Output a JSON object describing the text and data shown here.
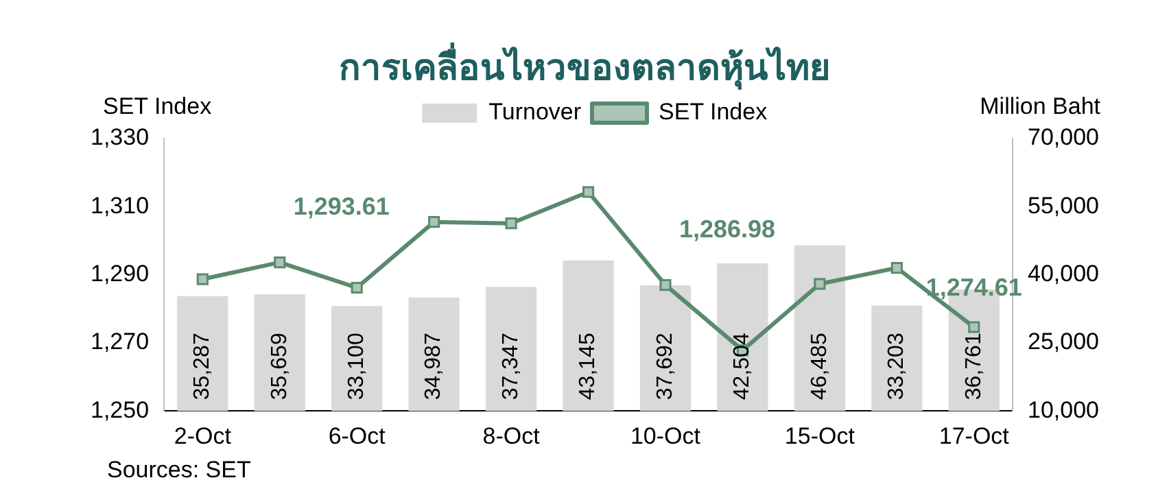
{
  "chart_data": {
    "type": "bar",
    "title": "การเคลื่อนไหวของตลาดหุ้นไทย",
    "ylabel": "SET Index",
    "y2label": "Million Baht",
    "categories": [
      "2-Oct",
      null,
      "6-Oct",
      null,
      "8-Oct",
      null,
      "10-Oct",
      null,
      "15-Oct",
      null,
      "17-Oct"
    ],
    "series": [
      {
        "name": "Turnover",
        "axis": "y2",
        "color": "#d9d9d9",
        "values": [
          35287,
          35659,
          33100,
          34987,
          37347,
          43145,
          37692,
          42504,
          46485,
          33203,
          36761
        ],
        "value_labels": [
          "35,287",
          "35,659",
          "33,100",
          "34,987",
          "37,347",
          "43,145",
          "37,692",
          "42,504",
          "46,485",
          "33,203",
          "36,761"
        ]
      },
      {
        "name": "SET Index",
        "type": "line",
        "axis": "y",
        "color": "#5a8a6e",
        "values": [
          1288.7,
          1293.61,
          1286.2,
          1305.5,
          1305.1,
          1314.3,
          1286.98,
          1267.8,
          1287.3,
          1292.0,
          1274.61
        ],
        "value_labels": [
          null,
          "1,293.61",
          null,
          null,
          null,
          null,
          "1,286.98",
          null,
          null,
          null,
          "1,274.61"
        ]
      }
    ],
    "ylim": [
      1250,
      1330
    ],
    "yticks": [
      {
        "value": 1250,
        "label": "1,250"
      },
      {
        "value": 1270,
        "label": "1,270"
      },
      {
        "value": 1290,
        "label": "1,290"
      },
      {
        "value": 1310,
        "label": "1,310"
      },
      {
        "value": 1330,
        "label": "1,330"
      }
    ],
    "y2lim": [
      10000,
      70000
    ],
    "y2ticks": [
      {
        "value": 10000,
        "label": "10,000"
      },
      {
        "value": 25000,
        "label": "25,000"
      },
      {
        "value": 40000,
        "label": "40,000"
      },
      {
        "value": 55000,
        "label": "55,000"
      },
      {
        "value": 70000,
        "label": "70,000"
      }
    ],
    "legend": "top",
    "marker": "square",
    "grid": false,
    "annotations": [
      "Sources: SET"
    ]
  }
}
